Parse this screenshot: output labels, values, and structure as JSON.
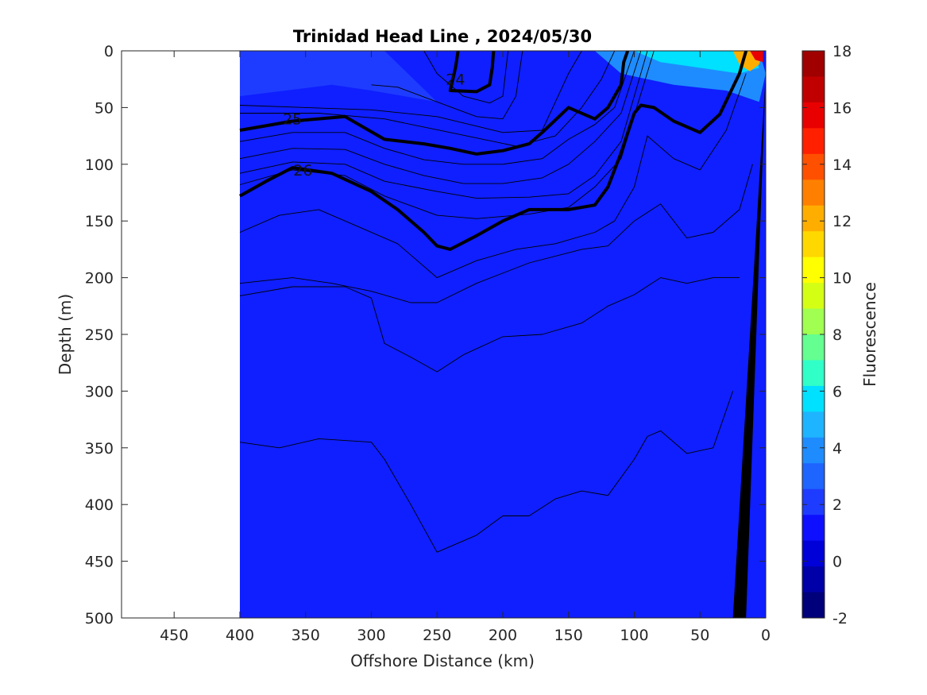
{
  "chart_data": {
    "type": "heatmap",
    "subtype": "filled-contour-section",
    "title": "Trinidad Head Line , 2024/05/30",
    "xlabel": "Offshore Distance (km)",
    "ylabel": "Depth (m)",
    "x_direction": "reversed",
    "xlim": [
      490,
      0
    ],
    "ylim": [
      0,
      500
    ],
    "y_direction": "reversed",
    "x_ticks": [
      450,
      400,
      350,
      300,
      250,
      200,
      150,
      100,
      50,
      0
    ],
    "y_ticks": [
      0,
      50,
      100,
      150,
      200,
      250,
      300,
      350,
      400,
      450,
      500
    ],
    "data_extent_x": [
      400,
      0
    ],
    "colorbar": {
      "label": "Fluorescence",
      "range": [
        -2,
        18
      ],
      "ticks": [
        18,
        16,
        14,
        12,
        10,
        8,
        6,
        4,
        2,
        0,
        -2
      ],
      "colors": [
        "#00007a",
        "#0000a8",
        "#0000d8",
        "#0f0fff",
        "#1e3cff",
        "#1e64ff",
        "#1e8cff",
        "#1eb4ff",
        "#00e0ff",
        "#30ffc8",
        "#64ff90",
        "#a0ff50",
        "#d4ff14",
        "#ffff00",
        "#ffd800",
        "#ffae00",
        "#ff8000",
        "#ff5000",
        "#ff2000",
        "#e80000",
        "#c00000",
        "#a00000"
      ],
      "background_color": "#0f1fff"
    },
    "surface_patches": [
      {
        "name": "near-surface-offshore",
        "level": 2,
        "x": [
          400,
          330,
          300,
          290,
          250,
          300,
          330,
          400
        ],
        "y": [
          0,
          0,
          0,
          0,
          45,
          35,
          30,
          40
        ]
      },
      {
        "name": "coastal-bloom-outer",
        "level": 4,
        "x": [
          130,
          110,
          80,
          50,
          20,
          5,
          0,
          5,
          30,
          70,
          110
        ],
        "y": [
          0,
          0,
          0,
          0,
          0,
          0,
          20,
          45,
          35,
          30,
          20
        ]
      },
      {
        "name": "coastal-bloom-mid",
        "level": 6,
        "x": [
          100,
          80,
          50,
          25,
          10,
          5,
          20,
          50,
          80
        ],
        "y": [
          0,
          0,
          0,
          0,
          0,
          15,
          20,
          15,
          10
        ]
      },
      {
        "name": "coastal-bloom-core",
        "level": 12,
        "x": [
          25,
          12,
          2,
          5,
          12,
          20
        ],
        "y": [
          0,
          0,
          0,
          12,
          18,
          12
        ]
      },
      {
        "name": "coastal-bloom-peak",
        "level": 16,
        "x": [
          12,
          2,
          2,
          8
        ],
        "y": [
          0,
          0,
          10,
          8
        ]
      }
    ],
    "density_contours": [
      {
        "level": 24,
        "labeled": true,
        "label_at": [
          236,
          25
        ],
        "x": [
          234,
          236,
          240,
          220,
          210,
          208,
          207
        ],
        "y": [
          0,
          15,
          35,
          36,
          30,
          15,
          0
        ],
        "bold": true
      },
      {
        "level": 24.2,
        "x": [
          260,
          250,
          230,
          210,
          200,
          198,
          196
        ],
        "y": [
          0,
          20,
          40,
          46,
          40,
          20,
          0
        ]
      },
      {
        "level": 24.4,
        "x": [
          300,
          280,
          250,
          220,
          200,
          190,
          185
        ],
        "y": [
          30,
          32,
          45,
          58,
          60,
          40,
          0
        ]
      },
      {
        "level": 24.6,
        "x": [
          400,
          350,
          300,
          250,
          200,
          170,
          160,
          150,
          140
        ],
        "y": [
          48,
          50,
          52,
          58,
          72,
          70,
          45,
          20,
          0
        ]
      },
      {
        "level": 24.8,
        "x": [
          400,
          340,
          290,
          240,
          190,
          160,
          140,
          125,
          115
        ],
        "y": [
          55,
          55,
          60,
          72,
          84,
          75,
          50,
          25,
          0
        ]
      },
      {
        "level": 25,
        "labeled": true,
        "bold": true,
        "label_at": [
          360,
          60
        ],
        "x": [
          400,
          360,
          320,
          290,
          260,
          240,
          220,
          200,
          180,
          170,
          150,
          130,
          120,
          110,
          108,
          105
        ],
        "y": [
          70,
          62,
          58,
          78,
          82,
          86,
          91,
          88,
          82,
          72,
          50,
          60,
          50,
          30,
          10,
          0
        ]
      },
      {
        "level": 25.2,
        "x": [
          400,
          360,
          320,
          290,
          260,
          230,
          200,
          170,
          150,
          130,
          115,
          100
        ],
        "y": [
          80,
          72,
          72,
          86,
          96,
          100,
          100,
          95,
          78,
          65,
          50,
          0
        ]
      },
      {
        "level": 25.4,
        "x": [
          400,
          360,
          320,
          290,
          260,
          230,
          200,
          170,
          150,
          130,
          110,
          95
        ],
        "y": [
          95,
          86,
          87,
          100,
          110,
          117,
          117,
          112,
          100,
          80,
          55,
          0
        ]
      },
      {
        "level": 25.6,
        "x": [
          400,
          360,
          320,
          290,
          250,
          220,
          180,
          150,
          130,
          110,
          90
        ],
        "y": [
          108,
          98,
          100,
          115,
          124,
          130,
          129,
          126,
          110,
          80,
          0
        ]
      },
      {
        "level": 25.8,
        "x": [
          400,
          360,
          320,
          290,
          250,
          220,
          180,
          150,
          130,
          110,
          85
        ],
        "y": [
          118,
          105,
          110,
          128,
          145,
          148,
          144,
          138,
          120,
          95,
          0
        ]
      },
      {
        "level": 26,
        "labeled": true,
        "bold": true,
        "label_at": [
          352,
          105
        ],
        "x": [
          400,
          380,
          360,
          330,
          300,
          280,
          260,
          250,
          240,
          220,
          200,
          180,
          150,
          130,
          120,
          110,
          100,
          95,
          85,
          70,
          50,
          35,
          20,
          15
        ],
        "y": [
          128,
          115,
          103,
          108,
          124,
          140,
          160,
          172,
          175,
          163,
          150,
          140,
          140,
          136,
          120,
          90,
          55,
          48,
          50,
          62,
          72,
          56,
          20,
          0
        ]
      },
      {
        "level": 26.2,
        "x": [
          400,
          370,
          340,
          310,
          280,
          250,
          220,
          190,
          160,
          130,
          115,
          100,
          90,
          70,
          50,
          30,
          15
        ],
        "y": [
          160,
          145,
          140,
          155,
          170,
          200,
          185,
          175,
          170,
          160,
          150,
          120,
          75,
          95,
          105,
          70,
          20
        ]
      },
      {
        "level": 26.4,
        "x": [
          400,
          360,
          330,
          300,
          270,
          250,
          220,
          180,
          140,
          120,
          100,
          80,
          60,
          40,
          20,
          10
        ],
        "y": [
          205,
          200,
          205,
          212,
          222,
          222,
          205,
          187,
          175,
          172,
          150,
          135,
          165,
          160,
          140,
          100
        ]
      },
      {
        "level": 26.6,
        "x": [
          400,
          360,
          320,
          300,
          290,
          270,
          250,
          230,
          200,
          170,
          140,
          120,
          100,
          80,
          60,
          40,
          20
        ],
        "y": [
          216,
          208,
          208,
          218,
          258,
          270,
          283,
          268,
          252,
          250,
          240,
          225,
          215,
          200,
          205,
          200,
          200
        ]
      },
      {
        "level": 26.8,
        "x": [
          400,
          370,
          340,
          300,
          290,
          270,
          250,
          220,
          200,
          180,
          160,
          140,
          120,
          100,
          90,
          80,
          60,
          40,
          25
        ],
        "y": [
          345,
          350,
          342,
          345,
          360,
          400,
          442,
          427,
          410,
          410,
          395,
          388,
          392,
          360,
          340,
          335,
          355,
          350,
          300
        ]
      }
    ],
    "bathymetry": {
      "color": "#000000",
      "x": [
        0,
        25,
        15,
        5,
        0
      ],
      "y": [
        20,
        500,
        500,
        180,
        20
      ]
    }
  }
}
